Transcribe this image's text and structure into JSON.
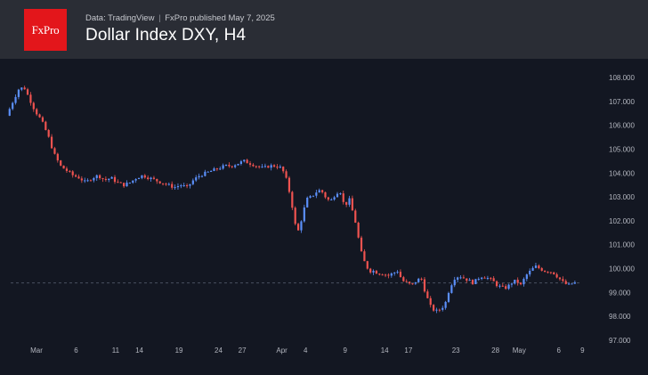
{
  "header": {
    "logo_text": "FxPro",
    "source_text": "Data: TradingView",
    "separator": "|",
    "published_text": "FxPro published May 7, 2025",
    "title": "Dollar Index DXY, H4"
  },
  "colors": {
    "background": "#131722",
    "header_background": "#2a2d35",
    "logo_red": "#e3161b",
    "candle_up": "#5b8ff9",
    "candle_down": "#ef5350",
    "reference_line": "#4a5060"
  },
  "chart_data": {
    "type": "candlestick",
    "title": "Dollar Index DXY, H4",
    "ylim": [
      97.0,
      108.0
    ],
    "y_ticks": [
      "108.000",
      "107.000",
      "106.000",
      "105.000",
      "104.000",
      "103.000",
      "102.000",
      "101.000",
      "100.000",
      "99.000",
      "98.000",
      "97.000"
    ],
    "x_ticks": [
      {
        "label": "Mar",
        "day": 0
      },
      {
        "label": "6",
        "day": 5
      },
      {
        "label": "11",
        "day": 10
      },
      {
        "label": "14",
        "day": 13
      },
      {
        "label": "19",
        "day": 18
      },
      {
        "label": "24",
        "day": 23
      },
      {
        "label": "27",
        "day": 26
      },
      {
        "label": "Apr",
        "day": 31
      },
      {
        "label": "4",
        "day": 34
      },
      {
        "label": "9",
        "day": 39
      },
      {
        "label": "14",
        "day": 44
      },
      {
        "label": "17",
        "day": 47
      },
      {
        "label": "23",
        "day": 53
      },
      {
        "label": "28",
        "day": 58
      },
      {
        "label": "May",
        "day": 61
      },
      {
        "label": "6",
        "day": 66
      },
      {
        "label": "9",
        "day": 69
      }
    ],
    "reference_level": 99.4,
    "grid": false,
    "path": [
      [
        -3.4,
        106.4
      ],
      [
        -2.6,
        107.0
      ],
      [
        -1.9,
        107.5
      ],
      [
        -1.2,
        107.6
      ],
      [
        -0.5,
        107.1
      ],
      [
        0.2,
        106.6
      ],
      [
        1.0,
        106.2
      ],
      [
        1.8,
        105.6
      ],
      [
        2.6,
        104.8
      ],
      [
        3.4,
        104.3
      ],
      [
        4.2,
        104.1
      ],
      [
        5.0,
        103.9
      ],
      [
        5.8,
        103.8
      ],
      [
        6.6,
        103.6
      ],
      [
        7.4,
        103.8
      ],
      [
        8.2,
        103.9
      ],
      [
        9.0,
        103.7
      ],
      [
        9.8,
        103.8
      ],
      [
        10.6,
        103.6
      ],
      [
        11.4,
        103.5
      ],
      [
        12.2,
        103.6
      ],
      [
        13.0,
        103.8
      ],
      [
        13.8,
        103.9
      ],
      [
        14.6,
        103.8
      ],
      [
        15.4,
        103.7
      ],
      [
        16.2,
        103.6
      ],
      [
        17.0,
        103.5
      ],
      [
        17.8,
        103.4
      ],
      [
        18.6,
        103.5
      ],
      [
        19.4,
        103.4
      ],
      [
        20.2,
        103.7
      ],
      [
        21.0,
        103.9
      ],
      [
        21.8,
        104.0
      ],
      [
        22.6,
        104.1
      ],
      [
        23.4,
        104.2
      ],
      [
        24.2,
        104.3
      ],
      [
        25.0,
        104.3
      ],
      [
        25.8,
        104.4
      ],
      [
        26.6,
        104.5
      ],
      [
        27.4,
        104.4
      ],
      [
        28.2,
        104.3
      ],
      [
        29.0,
        104.2
      ],
      [
        29.8,
        104.3
      ],
      [
        30.6,
        104.3
      ],
      [
        31.4,
        104.2
      ],
      [
        32.1,
        103.6
      ],
      [
        32.7,
        102.6
      ],
      [
        33.3,
        101.4
      ],
      [
        33.9,
        102.1
      ],
      [
        34.5,
        102.9
      ],
      [
        35.1,
        103.0
      ],
      [
        35.7,
        103.2
      ],
      [
        36.3,
        103.3
      ],
      [
        36.9,
        103.0
      ],
      [
        37.5,
        102.8
      ],
      [
        38.1,
        103.1
      ],
      [
        38.7,
        103.3
      ],
      [
        39.3,
        102.6
      ],
      [
        39.9,
        102.9
      ],
      [
        40.4,
        102.3
      ],
      [
        40.8,
        101.8
      ],
      [
        41.3,
        100.8
      ],
      [
        41.8,
        100.3
      ],
      [
        42.4,
        99.9
      ],
      [
        43.0,
        99.9
      ],
      [
        43.6,
        99.8
      ],
      [
        44.2,
        99.8
      ],
      [
        44.8,
        99.7
      ],
      [
        45.4,
        99.8
      ],
      [
        46.0,
        99.9
      ],
      [
        46.6,
        99.5
      ],
      [
        47.2,
        99.4
      ],
      [
        47.8,
        99.3
      ],
      [
        48.4,
        99.5
      ],
      [
        49.0,
        99.6
      ],
      [
        49.6,
        98.9
      ],
      [
        50.2,
        98.4
      ],
      [
        50.8,
        98.2
      ],
      [
        51.4,
        98.3
      ],
      [
        52.0,
        98.5
      ],
      [
        52.6,
        99.2
      ],
      [
        53.2,
        99.6
      ],
      [
        53.8,
        99.7
      ],
      [
        54.4,
        99.6
      ],
      [
        55.0,
        99.5
      ],
      [
        55.6,
        99.4
      ],
      [
        56.2,
        99.6
      ],
      [
        56.8,
        99.7
      ],
      [
        57.4,
        99.6
      ],
      [
        58.0,
        99.5
      ],
      [
        58.6,
        99.3
      ],
      [
        59.2,
        99.2
      ],
      [
        59.8,
        99.2
      ],
      [
        60.4,
        99.4
      ],
      [
        61.0,
        99.5
      ],
      [
        61.6,
        99.3
      ],
      [
        62.2,
        99.7
      ],
      [
        62.8,
        99.9
      ],
      [
        63.4,
        100.1
      ],
      [
        64.0,
        100.0
      ],
      [
        64.6,
        99.9
      ],
      [
        65.2,
        99.9
      ],
      [
        65.8,
        99.8
      ],
      [
        66.4,
        99.6
      ],
      [
        67.0,
        99.4
      ],
      [
        67.6,
        99.3
      ],
      [
        68.2,
        99.4
      ]
    ]
  }
}
